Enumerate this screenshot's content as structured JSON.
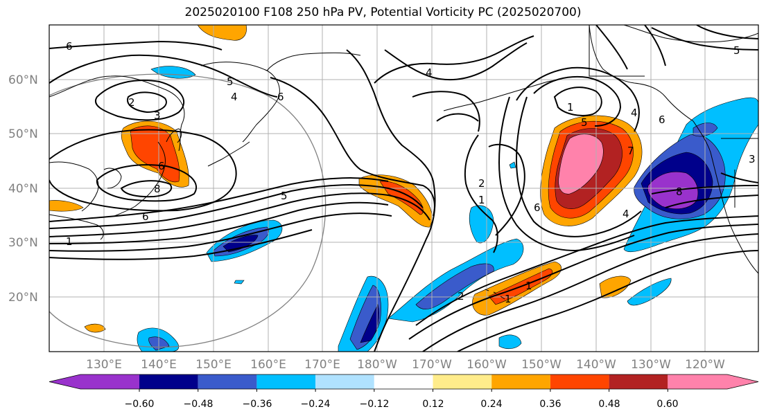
{
  "title": "2025020100 F108 250 hPa PV, Potential Vorticity PC (2025020700)",
  "lat_labels": [
    "60°N",
    "50°N",
    "40°N",
    "30°N",
    "20°N"
  ],
  "lon_labels": [
    "130°E",
    "140°E",
    "150°E",
    "160°E",
    "170°E",
    "180°W",
    "170°W",
    "160°W",
    "150°W",
    "140°W",
    "130°W",
    "120°W"
  ],
  "colorbar": {
    "ticks": [
      "−0.60",
      "−0.48",
      "−0.36",
      "−0.24",
      "−0.12",
      "0.12",
      "0.24",
      "0.36",
      "0.48",
      "0.60"
    ],
    "colors": [
      "#9932CC",
      "#00008B",
      "#3A5BCB",
      "#00BFFF",
      "#B0E2FF",
      "#FFFFFF",
      "#FFEC8B",
      "#FFA500",
      "#FF4500",
      "#B22222",
      "#FF82AB"
    ]
  },
  "contour_labels": [
    "6",
    "4",
    "5",
    "6",
    "2",
    "3",
    "6",
    "8",
    "6",
    "5",
    "1",
    "4",
    "2",
    "1",
    "1",
    "5",
    "7",
    "6",
    "4",
    "6",
    "8",
    "1",
    "2",
    "5",
    "3",
    "1",
    "4"
  ]
}
